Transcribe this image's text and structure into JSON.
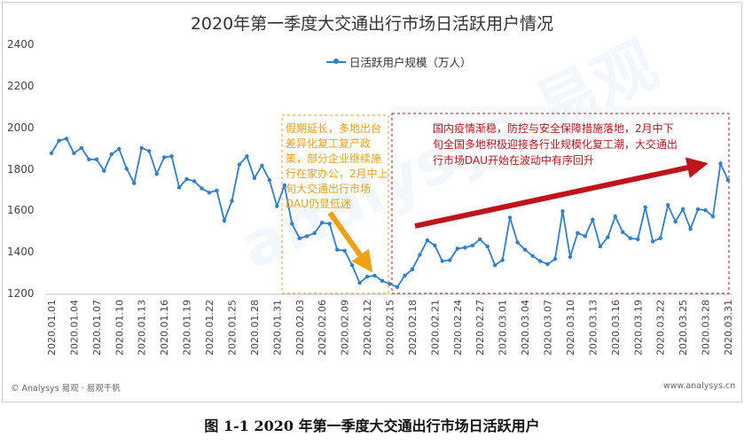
{
  "figure": {
    "caption": "图 1-1  2020 年第一季度大交通出行市场日活跃用户",
    "footer_left": "© Analysys 易观 · 易观千帆",
    "footer_right": "www.analysys.cn",
    "watermark": "analysys 易观"
  },
  "annotations": {
    "left_box": "假期延长，多地出台差异化复工复产政策，部分企业继续施行在家办公，2月中上旬大交通出行市场DAU仍显低迷",
    "right_box": "国内疫情渐稳，防控与安全保障措施落地，2月中下旬全国多地积极迎接各行业规模化复工潮，大交通出行市场DAU开始在波动中有序回升",
    "left_color": "#f0a010",
    "right_color": "#c0131b"
  },
  "chart_data": {
    "type": "line",
    "title": "2020年第一季度大交通出行市场日活跃用户情况",
    "legend": "日活跃用户规模（万人）",
    "legend_position": "top-center",
    "ylim": [
      1200,
      2400
    ],
    "yticks": [
      1200,
      1400,
      1600,
      1800,
      2000,
      2200,
      2400
    ],
    "grid": false,
    "xtick_labels": [
      "2020.01.01",
      "2020.01.04",
      "2020.01.07",
      "2020.01.10",
      "2020.01.13",
      "2020.01.16",
      "2020.01.19",
      "2020.01.22",
      "2020.01.25",
      "2020.01.28",
      "2020.01.31",
      "2020.02.03",
      "2020.02.06",
      "2020.02.09",
      "2020.02.12",
      "2020.02.15",
      "2020.02.18",
      "2020.02.21",
      "2020.02.24",
      "2020.02.27",
      "2020.03.01",
      "2020.03.04",
      "2020.03.07",
      "2020.03.10",
      "2020.03.13",
      "2020.03.16",
      "2020.03.19",
      "2020.03.22",
      "2020.03.25",
      "2020.03.28",
      "2020.03.31"
    ],
    "series_color": "#2d7fd3",
    "series": [
      {
        "name": "日活跃用户规模（万人）",
        "values": [
          1880,
          1940,
          1950,
          1880,
          1905,
          1850,
          1850,
          1795,
          1875,
          1900,
          1805,
          1735,
          1905,
          1890,
          1780,
          1860,
          1865,
          1715,
          1755,
          1745,
          1710,
          1690,
          1700,
          1555,
          1650,
          1825,
          1865,
          1760,
          1820,
          1750,
          1625,
          1725,
          1540,
          1470,
          1480,
          1495,
          1545,
          1540,
          1415,
          1410,
          1340,
          1255,
          1285,
          1290,
          1265,
          1250,
          1235,
          1290,
          1320,
          1390,
          1460,
          1435,
          1360,
          1365,
          1420,
          1425,
          1435,
          1465,
          1430,
          1340,
          1365,
          1570,
          1450,
          1415,
          1385,
          1360,
          1345,
          1370,
          1600,
          1380,
          1495,
          1480,
          1560,
          1430,
          1475,
          1575,
          1500,
          1470,
          1465,
          1620,
          1455,
          1470,
          1630,
          1550,
          1610,
          1515,
          1610,
          1605,
          1575,
          1830,
          1750
        ]
      }
    ]
  }
}
